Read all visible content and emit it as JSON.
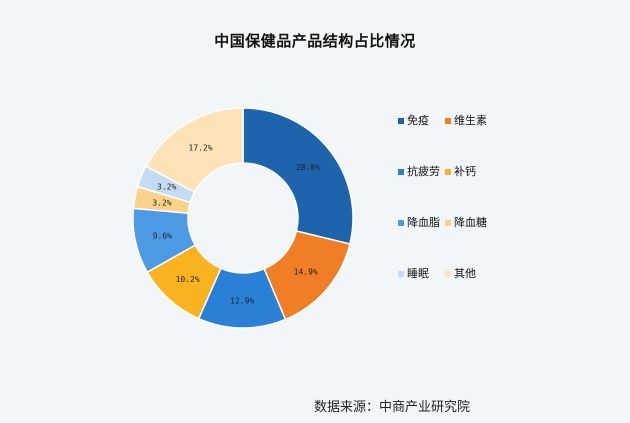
{
  "chart_data": {
    "type": "pie",
    "title": "中国保健品产品结构占比情况",
    "source": "数据来源：中商产业研究院",
    "legend_position": "right",
    "slices": [
      {
        "name": "免疫",
        "value": 28.8,
        "label": "28.8%",
        "color": "#1e64ad"
      },
      {
        "name": "维生素",
        "value": 14.9,
        "label": "14.9%",
        "color": "#f07e26"
      },
      {
        "name": "抗疲劳",
        "value": 12.9,
        "label": "12.9%",
        "color": "#2a80d6"
      },
      {
        "name": "补钙",
        "value": 10.2,
        "label": "10.2%",
        "color": "#f8b31e"
      },
      {
        "name": "降血脂",
        "value": 9.6,
        "label": "9.6%",
        "color": "#4c99e4"
      },
      {
        "name": "降血糖",
        "value": 3.2,
        "label": "3.2%",
        "color": "#fbd28a"
      },
      {
        "name": "睡眠",
        "value": 3.2,
        "label": "3.2%",
        "color": "#c4dcf3"
      },
      {
        "name": "其他",
        "value": 17.2,
        "label": "17.2%",
        "color": "#fde2b8"
      }
    ]
  }
}
